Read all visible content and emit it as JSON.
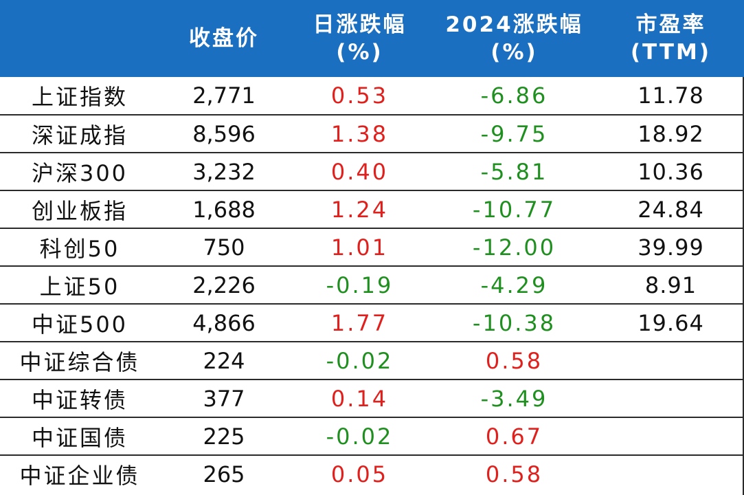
{
  "colors": {
    "header_bg": "#1b6fc0",
    "up": "#e0201c",
    "down": "#1f8f1f"
  },
  "header": {
    "col_name": "",
    "col_close": "收盘价",
    "col_daily_line1": "日涨跌幅",
    "col_daily_line2": "(%)",
    "col_ytd_line1": "2024涨跌幅",
    "col_ytd_line2": "(%)",
    "col_pe_line1": "市盈率",
    "col_pe_line2": "(TTM)"
  },
  "rows": [
    {
      "name": "上证指数",
      "close": "2,771",
      "daily": "0.53",
      "ytd": "-6.86",
      "pe": "11.78"
    },
    {
      "name": "深证成指",
      "close": "8,596",
      "daily": "1.38",
      "ytd": "-9.75",
      "pe": "18.92"
    },
    {
      "name": "沪深300",
      "close": "3,232",
      "daily": "0.40",
      "ytd": "-5.81",
      "pe": "10.36"
    },
    {
      "name": "创业板指",
      "close": "1,688",
      "daily": "1.24",
      "ytd": "-10.77",
      "pe": "24.84"
    },
    {
      "name": "科创50",
      "close": "750",
      "daily": "1.01",
      "ytd": "-12.00",
      "pe": "39.99"
    },
    {
      "name": "上证50",
      "close": "2,226",
      "daily": "-0.19",
      "ytd": "-4.29",
      "pe": "8.91"
    },
    {
      "name": "中证500",
      "close": "4,866",
      "daily": "1.77",
      "ytd": "-10.38",
      "pe": "19.64"
    },
    {
      "name": "中证综合债",
      "close": "224",
      "daily": "-0.02",
      "ytd": "0.58",
      "pe": ""
    },
    {
      "name": "中证转债",
      "close": "377",
      "daily": "0.14",
      "ytd": "-3.49",
      "pe": ""
    },
    {
      "name": "中证国债",
      "close": "225",
      "daily": "-0.02",
      "ytd": "0.67",
      "pe": ""
    },
    {
      "name": "中证企业债",
      "close": "265",
      "daily": "0.05",
      "ytd": "0.58",
      "pe": ""
    }
  ]
}
